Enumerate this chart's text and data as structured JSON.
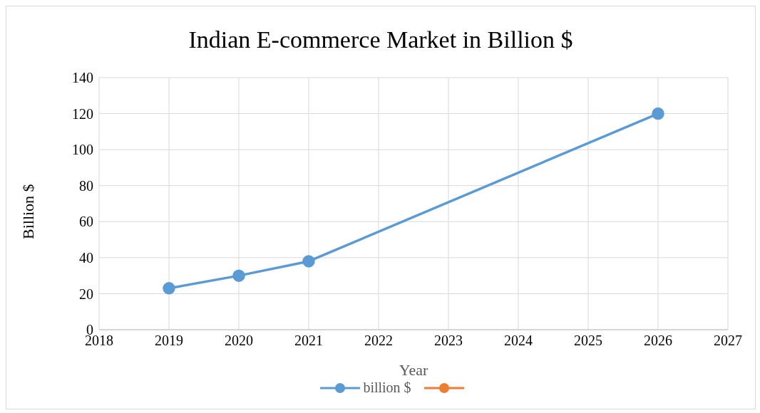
{
  "chart_data": {
    "type": "line",
    "title": "Indian E-commerce Market in Billion $",
    "xlabel": "Year",
    "ylabel": "Billion $",
    "x": [
      2019,
      2020,
      2021,
      2026
    ],
    "series": [
      {
        "name": "billion $",
        "color": "#5b9bd5",
        "values": [
          23,
          30,
          38,
          120
        ]
      },
      {
        "color": "#ed7d31",
        "values": [
          null,
          null,
          null,
          null
        ]
      }
    ],
    "xlim": [
      2018,
      2027
    ],
    "xticks": [
      2018,
      2019,
      2020,
      2021,
      2022,
      2023,
      2024,
      2025,
      2026,
      2027
    ],
    "ylim": [
      0,
      140
    ],
    "yticks": [
      0,
      20,
      40,
      60,
      80,
      100,
      120,
      140
    ],
    "grid": true,
    "legend": "bottom",
    "marker": "circle",
    "line_style": "solid"
  }
}
